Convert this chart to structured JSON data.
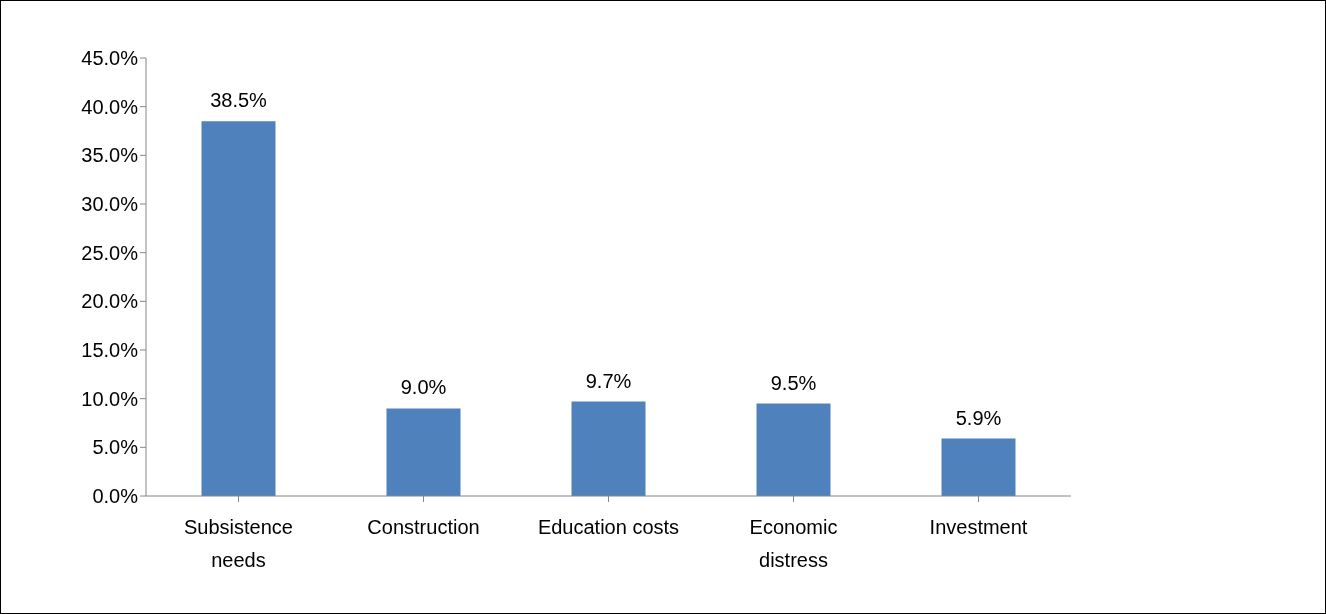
{
  "chart_data": {
    "type": "bar",
    "categories": [
      "Subsistence needs",
      "Construction",
      "Education costs",
      "Economic distress",
      "Investment"
    ],
    "values": [
      38.5,
      9.0,
      9.7,
      9.5,
      5.9
    ],
    "value_labels": [
      "38.5%",
      "9.0%",
      "9.7%",
      "9.5%",
      "5.9%"
    ],
    "color": "#4f81bd",
    "ylim": [
      0,
      45
    ],
    "yticks": [
      {
        "value": 0,
        "label": "0.0%"
      },
      {
        "value": 5,
        "label": "5.0%"
      },
      {
        "value": 10,
        "label": "10.0%"
      },
      {
        "value": 15,
        "label": "15.0%"
      },
      {
        "value": 20,
        "label": "20.0%"
      },
      {
        "value": 25,
        "label": "25.0%"
      },
      {
        "value": 30,
        "label": "30.0%"
      },
      {
        "value": 35,
        "label": "35.0%"
      },
      {
        "value": 40,
        "label": "40.0%"
      },
      {
        "value": 45,
        "label": "45.0%"
      }
    ],
    "grid": false,
    "legend": false
  }
}
